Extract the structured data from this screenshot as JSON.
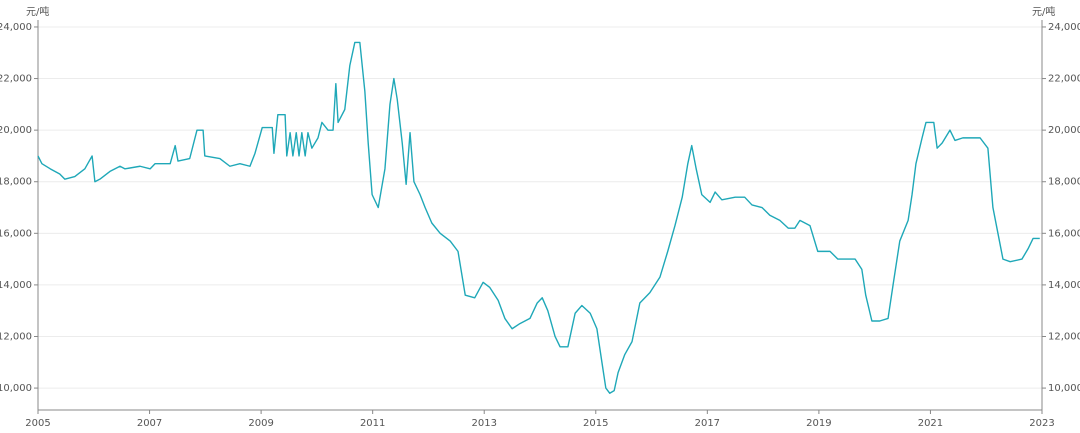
{
  "chart_data": {
    "type": "line",
    "y_label": "元/吨",
    "y2_label": "元/吨",
    "xlim": [
      2005,
      2023
    ],
    "xticks": [
      2005,
      2007,
      2009,
      2011,
      2013,
      2015,
      2017,
      2019,
      2021,
      2023
    ],
    "ylim": [
      9150,
      24270
    ],
    "yticks": [
      {
        "value": 10000,
        "label": "10,000"
      },
      {
        "value": 12000,
        "label": "12,000"
      },
      {
        "value": 14000,
        "label": "14,000"
      },
      {
        "value": 16000,
        "label": "16,000"
      },
      {
        "value": 18000,
        "label": "18,000"
      },
      {
        "value": 20000,
        "label": "20,000"
      },
      {
        "value": 22000,
        "label": "22,000"
      },
      {
        "value": 24000,
        "label": "24,000"
      }
    ],
    "y2lim": [
      9150,
      24270
    ],
    "y2ticks": [
      {
        "value": 10000,
        "label": "10,000"
      },
      {
        "value": 12000,
        "label": "12,000"
      },
      {
        "value": 14000,
        "label": "14,000"
      },
      {
        "value": 16000,
        "label": "16,000"
      },
      {
        "value": 18000,
        "label": "18,000"
      },
      {
        "value": 20000,
        "label": "20,000"
      },
      {
        "value": 22000,
        "label": "22,000"
      },
      {
        "value": 24000,
        "label": "24,000"
      }
    ],
    "grid": true,
    "x": [
      2005.0,
      2005.07,
      2005.22,
      2005.39,
      2005.48,
      2005.66,
      2005.84,
      2005.97,
      2006.02,
      2006.11,
      2006.29,
      2006.47,
      2006.56,
      2006.83,
      2007.01,
      2007.1,
      2007.37,
      2007.46,
      2007.51,
      2007.72,
      2007.85,
      2007.96,
      2007.99,
      2008.26,
      2008.44,
      2008.62,
      2008.8,
      2008.89,
      2009.02,
      2009.2,
      2009.23,
      2009.3,
      2009.43,
      2009.46,
      2009.52,
      2009.57,
      2009.63,
      2009.68,
      2009.73,
      2009.79,
      2009.84,
      2009.91,
      2010.02,
      2010.09,
      2010.2,
      2010.29,
      2010.34,
      2010.38,
      2010.5,
      2010.59,
      2010.68,
      2010.77,
      2010.86,
      2010.92,
      2010.99,
      2011.1,
      2011.22,
      2011.31,
      2011.38,
      2011.44,
      2011.53,
      2011.6,
      2011.67,
      2011.74,
      2011.85,
      2011.94,
      2012.06,
      2012.21,
      2012.39,
      2012.53,
      2012.66,
      2012.83,
      2012.98,
      2013.1,
      2013.25,
      2013.37,
      2013.5,
      2013.64,
      2013.82,
      2013.95,
      2014.04,
      2014.14,
      2014.27,
      2014.36,
      2014.5,
      2014.63,
      2014.75,
      2014.9,
      2015.02,
      2015.11,
      2015.18,
      2015.25,
      2015.33,
      2015.4,
      2015.52,
      2015.65,
      2015.79,
      2015.97,
      2016.15,
      2016.29,
      2016.42,
      2016.55,
      2016.65,
      2016.72,
      2016.8,
      2016.9,
      2017.05,
      2017.14,
      2017.26,
      2017.5,
      2017.67,
      2017.8,
      2017.98,
      2018.12,
      2018.3,
      2018.45,
      2018.57,
      2018.66,
      2018.84,
      2018.98,
      2019.2,
      2019.34,
      2019.65,
      2019.77,
      2019.84,
      2019.95,
      2020.09,
      2020.24,
      2020.33,
      2020.45,
      2020.6,
      2020.67,
      2020.74,
      2020.85,
      2020.92,
      2021.06,
      2021.12,
      2021.21,
      2021.35,
      2021.44,
      2021.58,
      2021.74,
      2021.89,
      2022.03,
      2022.12,
      2022.21,
      2022.3,
      2022.43,
      2022.64,
      2022.75,
      2022.84,
      2022.96
    ],
    "series": [
      {
        "color": "#1fa8b8",
        "values": [
          19000,
          18700,
          18500,
          18300,
          18100,
          18200,
          18500,
          19000,
          18000,
          18100,
          18400,
          18600,
          18500,
          18600,
          18500,
          18700,
          18700,
          19400,
          18800,
          18900,
          20000,
          20000,
          19000,
          18900,
          18600,
          18700,
          18600,
          19100,
          20100,
          20100,
          19100,
          20600,
          20600,
          19000,
          19900,
          19000,
          19900,
          19000,
          19900,
          19000,
          19900,
          19300,
          19700,
          20300,
          20000,
          20000,
          21800,
          20300,
          20800,
          22500,
          23400,
          23400,
          21500,
          19500,
          17500,
          17000,
          18500,
          21000,
          22000,
          21200,
          19500,
          17900,
          19900,
          18000,
          17500,
          17000,
          16400,
          16000,
          15700,
          15300,
          13600,
          13500,
          14100,
          13900,
          13400,
          12700,
          12300,
          12500,
          12700,
          13300,
          13500,
          13000,
          12000,
          11600,
          11600,
          12900,
          13200,
          12900,
          12300,
          11000,
          10000,
          9800,
          9900,
          10600,
          11300,
          11800,
          13300,
          13700,
          14300,
          15300,
          16300,
          17400,
          18700,
          19400,
          18500,
          17500,
          17200,
          17600,
          17300,
          17400,
          17400,
          17100,
          17000,
          16700,
          16500,
          16200,
          16200,
          16500,
          16300,
          15300,
          15300,
          15000,
          15000,
          14600,
          13600,
          12600,
          12600,
          12700,
          14000,
          15700,
          16500,
          17500,
          18700,
          19700,
          20300,
          20300,
          19300,
          19500,
          20000,
          19600,
          19700,
          19700,
          19700,
          19300,
          17000,
          16000,
          15000,
          14900,
          15000,
          15400,
          15800,
          15800
        ]
      }
    ]
  }
}
